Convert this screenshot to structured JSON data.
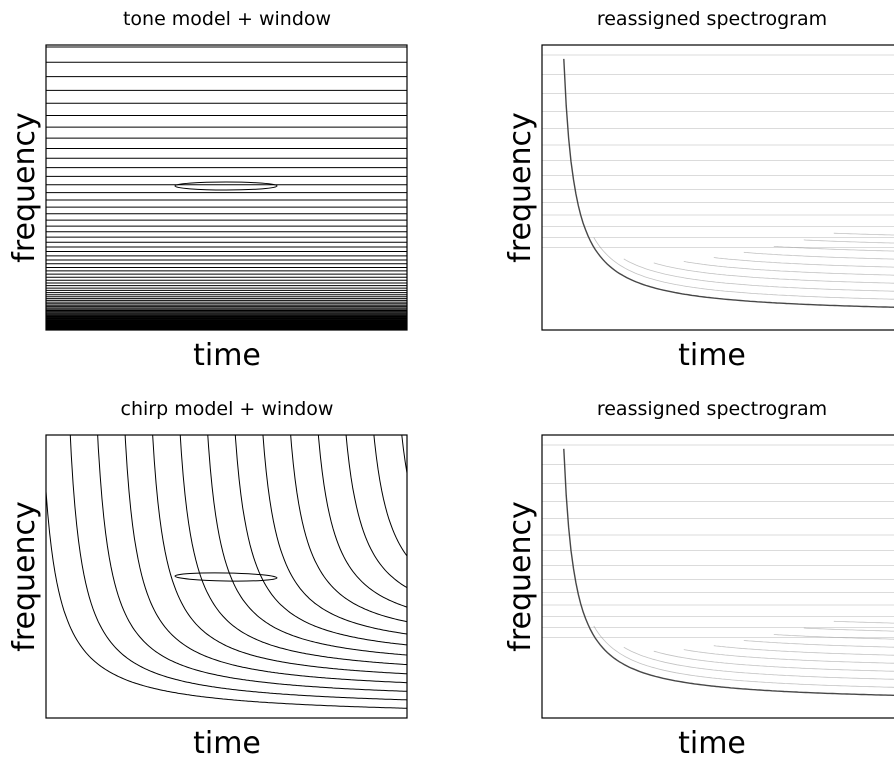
{
  "panels": [
    {
      "title": "tone model + window",
      "xlabel": "time",
      "ylabel": "frequency"
    },
    {
      "title": "reassigned spectrogram",
      "xlabel": "time",
      "ylabel": "frequency"
    },
    {
      "title": "chirp model + window",
      "xlabel": "time",
      "ylabel": "frequency"
    },
    {
      "title": "reassigned spectrogram",
      "xlabel": "time",
      "ylabel": "frequency"
    }
  ]
}
